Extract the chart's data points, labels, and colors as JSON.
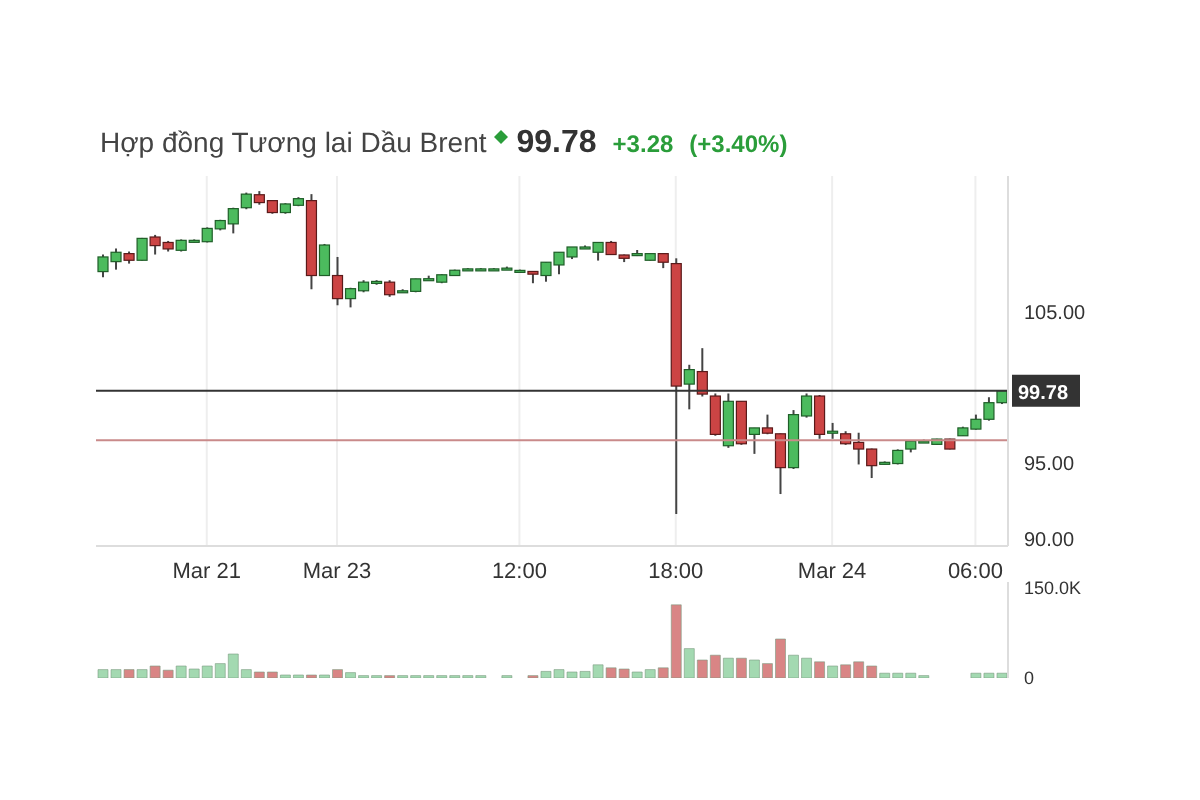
{
  "chart_data": [
    {
      "type": "candlestick",
      "title": "Hợp đồng Tương lai Dầu Brent",
      "annotations": [
        "99.78",
        "+3.28",
        "(+3.40%)"
      ],
      "categories": [
        null,
        null,
        null,
        null,
        null,
        null,
        null,
        null,
        "Mar 21",
        null,
        null,
        null,
        null,
        null,
        null,
        null,
        null,
        null,
        "Mar 23",
        null,
        null,
        null,
        null,
        null,
        null,
        null,
        null,
        null,
        null,
        null,
        null,
        null,
        "12:00",
        null,
        null,
        null,
        null,
        null,
        null,
        null,
        null,
        null,
        null,
        null,
        "18:00",
        null,
        null,
        null,
        null,
        null,
        null,
        null,
        null,
        null,
        null,
        null,
        "Mar 24",
        null,
        null,
        null,
        null,
        null,
        null,
        null,
        null,
        null,
        null,
        "06:00",
        null,
        null
      ],
      "ohlc": [
        [
          107.67,
          108.8,
          107.3,
          108.64
        ],
        [
          108.33,
          109.2,
          107.8,
          108.95
        ],
        [
          108.86,
          109.0,
          108.2,
          108.42
        ],
        [
          108.42,
          109.9,
          108.4,
          109.87
        ],
        [
          109.96,
          110.1,
          108.8,
          109.39
        ],
        [
          109.6,
          109.7,
          109.0,
          109.17
        ],
        [
          109.08,
          109.8,
          109.0,
          109.74
        ],
        [
          109.65,
          109.8,
          109.6,
          109.74
        ],
        [
          109.65,
          110.6,
          109.6,
          110.53
        ],
        [
          110.5,
          111.1,
          110.4,
          111.05
        ],
        [
          110.83,
          111.9,
          110.2,
          111.84
        ],
        [
          111.9,
          112.9,
          111.8,
          112.8
        ],
        [
          112.76,
          113.0,
          112.1,
          112.24
        ],
        [
          112.37,
          112.4,
          111.5,
          111.58
        ],
        [
          111.58,
          112.2,
          111.5,
          112.15
        ],
        [
          112.06,
          112.6,
          112.0,
          112.5
        ],
        [
          112.37,
          112.8,
          106.5,
          107.41
        ],
        [
          107.41,
          109.5,
          107.4,
          109.43
        ],
        [
          107.41,
          108.64,
          105.44,
          105.88
        ],
        [
          105.88,
          106.6,
          105.3,
          106.54
        ],
        [
          106.4,
          107.1,
          106.3,
          106.97
        ],
        [
          107.0,
          107.1,
          106.8,
          107.02
        ],
        [
          106.97,
          107.1,
          106.0,
          106.14
        ],
        [
          106.4,
          106.5,
          106.3,
          106.4
        ],
        [
          106.36,
          107.2,
          106.3,
          107.19
        ],
        [
          107.15,
          107.4,
          107.1,
          107.2
        ],
        [
          106.97,
          107.5,
          106.9,
          107.46
        ],
        [
          107.41,
          107.8,
          107.4,
          107.76
        ],
        [
          107.85,
          107.9,
          107.8,
          107.85
        ],
        [
          107.85,
          107.9,
          107.8,
          107.85
        ],
        [
          107.85,
          107.9,
          107.8,
          107.85
        ],
        [
          107.9,
          108.0,
          107.8,
          107.9
        ],
        [
          107.75,
          107.8,
          107.6,
          107.75
        ],
        [
          107.68,
          107.7,
          106.9,
          107.5
        ],
        [
          107.41,
          108.3,
          107.0,
          108.29
        ],
        [
          108.11,
          108.95,
          107.5,
          108.95
        ],
        [
          108.64,
          109.3,
          108.5,
          109.3
        ],
        [
          109.3,
          109.4,
          109.2,
          109.3
        ],
        [
          108.95,
          109.6,
          108.4,
          109.6
        ],
        [
          109.6,
          109.7,
          108.8,
          108.8
        ],
        [
          108.77,
          108.8,
          108.3,
          108.55
        ],
        [
          108.8,
          109.1,
          108.7,
          108.86
        ],
        [
          108.42,
          108.86,
          108.4,
          108.86
        ],
        [
          108.86,
          108.9,
          107.9,
          108.29
        ],
        [
          108.2,
          108.55,
          91.62,
          100.09
        ],
        [
          100.22,
          101.5,
          98.55,
          101.18
        ],
        [
          101.05,
          102.6,
          99.4,
          99.56
        ],
        [
          99.43,
          99.6,
          96.8,
          96.89
        ],
        [
          96.14,
          99.6,
          96.0,
          99.08
        ],
        [
          99.08,
          99.1,
          96.2,
          96.27
        ],
        [
          96.89,
          97.32,
          95.6,
          97.32
        ],
        [
          97.32,
          98.2,
          96.9,
          96.97
        ],
        [
          96.93,
          96.95,
          92.94,
          94.69
        ],
        [
          94.69,
          98.5,
          94.6,
          98.2
        ],
        [
          98.11,
          99.6,
          98.0,
          99.43
        ],
        [
          99.43,
          99.5,
          96.6,
          96.89
        ],
        [
          97.1,
          97.65,
          96.6,
          97.1
        ],
        [
          96.93,
          97.1,
          96.2,
          96.27
        ],
        [
          96.36,
          97.0,
          94.9,
          95.92
        ],
        [
          95.92,
          95.95,
          94.0,
          94.82
        ],
        [
          95.04,
          95.1,
          94.9,
          95.04
        ],
        [
          94.96,
          95.9,
          94.9,
          95.83
        ],
        [
          95.92,
          96.5,
          95.7,
          96.45
        ],
        [
          96.45,
          96.55,
          96.4,
          96.45
        ],
        [
          96.23,
          96.6,
          96.2,
          96.58
        ],
        [
          96.58,
          96.6,
          95.9,
          95.92
        ],
        [
          96.8,
          97.4,
          96.8,
          97.32
        ],
        [
          97.24,
          98.2,
          97.2,
          97.89
        ],
        [
          97.89,
          99.35,
          97.8,
          98.99
        ],
        [
          98.99,
          99.8,
          98.9,
          99.78
        ]
      ],
      "ylim": [
        89.5,
        114
      ],
      "yticks": [
        {
          "value": 90,
          "label": "90.00"
        },
        {
          "value": 95,
          "label": "95.00"
        },
        {
          "value": 105,
          "label": "105.00"
        }
      ],
      "ref_lines": [
        {
          "axis": "y",
          "value": 99.78,
          "label": "99.78",
          "color": "#333333"
        },
        {
          "axis": "y",
          "value": 96.5,
          "color": "#c98a8a"
        }
      ],
      "grid": "x"
    },
    {
      "type": "bar",
      "categories": [
        null,
        null,
        null,
        null,
        null,
        null,
        null,
        null,
        null,
        null,
        null,
        null,
        null,
        null,
        null,
        null,
        null,
        null,
        null,
        null,
        null,
        null,
        null,
        null,
        null,
        null,
        null,
        null,
        null,
        null,
        null,
        null,
        null,
        null,
        null,
        null,
        null,
        null,
        null,
        null,
        null,
        null,
        null,
        null,
        null,
        null,
        null,
        null,
        null,
        null,
        null,
        null,
        null,
        null,
        null,
        null,
        null,
        null,
        null,
        null,
        null,
        null,
        null,
        null,
        null,
        null,
        null,
        null,
        null,
        null
      ],
      "values": [
        14000,
        14000,
        14000,
        14000,
        20000,
        13000,
        20000,
        15000,
        20000,
        24000,
        40000,
        14000,
        10000,
        10000,
        5000,
        5000,
        5000,
        5000,
        14000,
        9000,
        4000,
        4000,
        4000,
        4000,
        4000,
        4000,
        4000,
        4000,
        4000,
        4000,
        null,
        4000,
        null,
        4000,
        11000,
        14000,
        10000,
        11000,
        22000,
        17000,
        15000,
        10000,
        14000,
        17000,
        122000,
        49000,
        30000,
        38000,
        33000,
        33000,
        30000,
        24000,
        65000,
        38000,
        33000,
        27000,
        20000,
        22000,
        27000,
        20000,
        8000,
        8000,
        8000,
        4000,
        null,
        null,
        null,
        8000,
        8000,
        8000
      ],
      "colors": [
        "#a3d9b1",
        "#a3d9b1",
        "#d98585",
        "#a3d9b1",
        "#d98585",
        "#d98585",
        "#a3d9b1",
        "#a3d9b1",
        "#a3d9b1",
        "#a3d9b1",
        "#a3d9b1",
        "#a3d9b1",
        "#d98585",
        "#d98585",
        "#a3d9b1",
        "#a3d9b1",
        "#d98585",
        "#a3d9b1",
        "#d98585",
        "#a3d9b1",
        "#a3d9b1",
        "#a3d9b1",
        "#d98585",
        "#a3d9b1",
        "#a3d9b1",
        "#a3d9b1",
        "#a3d9b1",
        "#a3d9b1",
        "#a3d9b1",
        "#a3d9b1",
        "#a3d9b1",
        "#a3d9b1",
        "#a3d9b1",
        "#d98585",
        "#a3d9b1",
        "#a3d9b1",
        "#a3d9b1",
        "#a3d9b1",
        "#a3d9b1",
        "#d98585",
        "#d98585",
        "#a3d9b1",
        "#a3d9b1",
        "#d98585",
        "#d98585",
        "#a3d9b1",
        "#d98585",
        "#d98585",
        "#a3d9b1",
        "#d98585",
        "#a3d9b1",
        "#d98585",
        "#d98585",
        "#a3d9b1",
        "#a3d9b1",
        "#d98585",
        "#a3d9b1",
        "#d98585",
        "#d98585",
        "#d98585",
        "#a3d9b1",
        "#a3d9b1",
        "#a3d9b1",
        "#a3d9b1",
        "#a3d9b1",
        "#d98585",
        "#a3d9b1",
        "#a3d9b1",
        "#a3d9b1",
        "#a3d9b1"
      ],
      "ylim": [
        0,
        160000
      ],
      "yticks": [
        0,
        {
          "value": 150000,
          "label": "150.0K"
        }
      ],
      "tick_labels": "y"
    }
  ]
}
